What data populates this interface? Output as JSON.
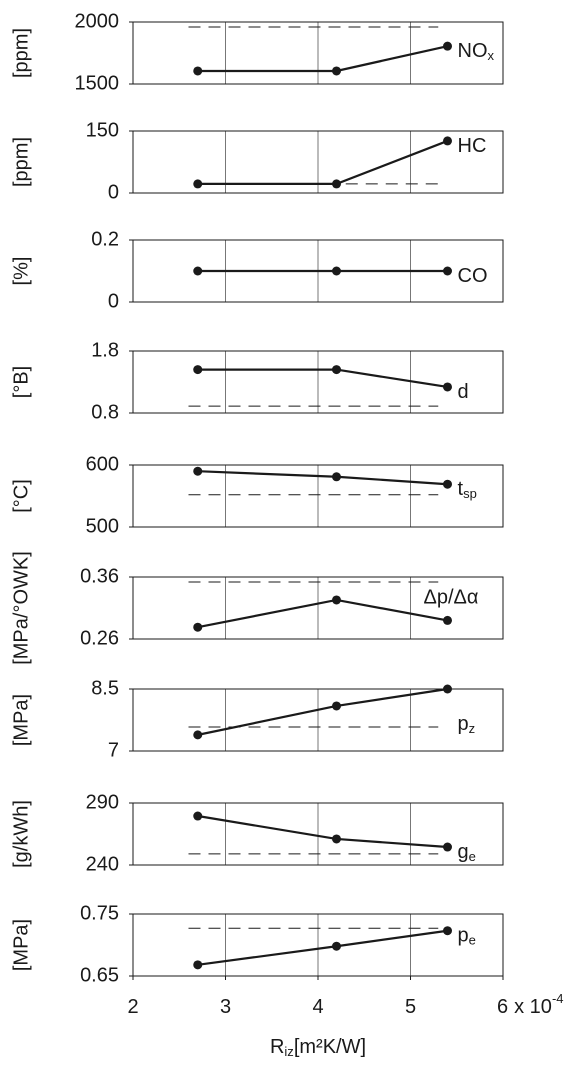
{
  "chart_data": [
    {
      "type": "line",
      "ylabel": "[ppm]",
      "label": "NO",
      "label_sub": "x",
      "x": [
        2.7,
        4.2,
        5.4
      ],
      "series": [
        {
          "values": [
            1605,
            1605,
            1805
          ],
          "color": "#1a1a1a"
        }
      ],
      "ref": 1960,
      "ref_x": [
        2.6,
        5.3
      ],
      "xlim": [
        2,
        6
      ],
      "ylim": [
        1500,
        2000
      ],
      "yticks": [
        1500,
        2000
      ],
      "grid": true
    },
    {
      "type": "line",
      "ylabel": "[ppm]",
      "label": "HC",
      "x": [
        2.7,
        4.2,
        5.4
      ],
      "series": [
        {
          "values": [
            22,
            22,
            126
          ],
          "color": "#1a1a1a"
        }
      ],
      "ref": 22,
      "ref_x": [
        4.3,
        5.3
      ],
      "xlim": [
        2,
        6
      ],
      "ylim": [
        0,
        150
      ],
      "yticks": [
        0,
        150
      ],
      "grid": true
    },
    {
      "type": "line",
      "ylabel": "[%]",
      "label": "CO",
      "x": [
        2.7,
        4.2,
        5.4
      ],
      "series": [
        {
          "values": [
            0.1,
            0.1,
            0.1
          ],
          "color": "#1a1a1a"
        }
      ],
      "xlim": [
        2,
        6
      ],
      "ylim": [
        0,
        0.2
      ],
      "yticks": [
        0,
        0.2
      ],
      "grid": true
    },
    {
      "type": "line",
      "ylabel": "[°B]",
      "label": "d",
      "x": [
        2.7,
        4.2,
        5.4
      ],
      "series": [
        {
          "values": [
            1.5,
            1.5,
            1.22
          ],
          "color": "#1a1a1a"
        }
      ],
      "ref": 0.91,
      "ref_x": [
        2.6,
        5.3
      ],
      "xlim": [
        2,
        6
      ],
      "ylim": [
        0.8,
        1.8
      ],
      "yticks": [
        0.8,
        1.8
      ],
      "grid": true
    },
    {
      "type": "line",
      "ylabel": "[°C]",
      "label": "t",
      "label_sub": "sp",
      "x": [
        2.7,
        4.2,
        5.4
      ],
      "series": [
        {
          "values": [
            590,
            581,
            569
          ],
          "color": "#1a1a1a"
        }
      ],
      "ref": 552,
      "ref_x": [
        2.6,
        5.3
      ],
      "xlim": [
        2,
        6
      ],
      "ylim": [
        500,
        600
      ],
      "yticks": [
        500,
        600
      ],
      "grid": true
    },
    {
      "type": "line",
      "ylabel": "[MPa/°OWK]",
      "label": "Δp/Δα",
      "x": [
        2.7,
        4.2,
        5.4
      ],
      "series": [
        {
          "values": [
            0.279,
            0.323,
            0.29
          ],
          "color": "#1a1a1a"
        }
      ],
      "ref": 0.352,
      "ref_x": [
        2.6,
        5.3
      ],
      "xlim": [
        2,
        6
      ],
      "ylim": [
        0.26,
        0.36
      ],
      "yticks": [
        0.26,
        0.36
      ],
      "grid": true
    },
    {
      "type": "line",
      "ylabel": "[MPa]",
      "label": "p",
      "label_sub": "z",
      "x": [
        2.7,
        4.2,
        5.4
      ],
      "series": [
        {
          "values": [
            7.39,
            8.09,
            8.5
          ],
          "color": "#1a1a1a"
        }
      ],
      "ref": 7.58,
      "ref_x": [
        2.6,
        5.3
      ],
      "xlim": [
        2,
        6
      ],
      "ylim": [
        7,
        8.5
      ],
      "yticks": [
        7,
        8.5
      ],
      "grid": true
    },
    {
      "type": "line",
      "ylabel": "[g/kWh]",
      "label": "g",
      "label_sub": "e",
      "x": [
        2.7,
        4.2,
        5.4
      ],
      "series": [
        {
          "values": [
            279.5,
            261,
            254.5
          ],
          "color": "#1a1a1a"
        }
      ],
      "ref": 249,
      "ref_x": [
        2.6,
        5.3
      ],
      "xlim": [
        2,
        6
      ],
      "ylim": [
        240,
        290
      ],
      "yticks": [
        240,
        290
      ],
      "grid": true
    },
    {
      "type": "line",
      "ylabel": "[MPa]",
      "label": "p",
      "label_sub": "e",
      "x": [
        2.7,
        4.2,
        5.4
      ],
      "series": [
        {
          "values": [
            0.668,
            0.698,
            0.723
          ],
          "color": "#1a1a1a"
        }
      ],
      "ref": 0.727,
      "ref_x": [
        2.6,
        5.3
      ],
      "xlim": [
        2,
        6
      ],
      "ylim": [
        0.65,
        0.75
      ],
      "yticks": [
        0.65,
        0.75
      ],
      "grid": true,
      "xticks": [
        2,
        3,
        4,
        5,
        6
      ],
      "x_multiplier": "x 10",
      "x_exponent": "-4",
      "xlabel": "R",
      "xlabel_sub": "iz",
      "xlabel_unit": "[m²K/W]"
    }
  ]
}
